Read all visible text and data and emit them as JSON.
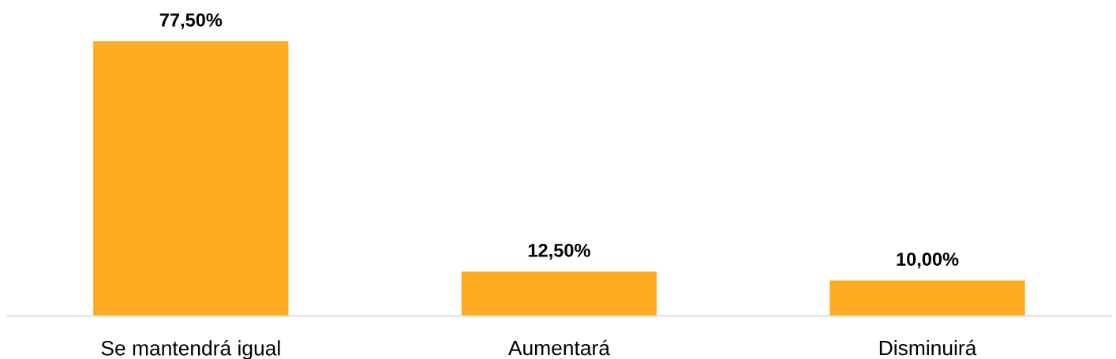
{
  "chart_data": {
    "type": "bar",
    "categories": [
      "Se mantendrá igual",
      "Aumentará",
      "Disminuirá"
    ],
    "values": [
      77.5,
      12.5,
      10.0
    ],
    "color": "#fdab20",
    "value_labels": [
      "77,50%",
      "12,50%",
      "10,00%"
    ],
    "grid": false,
    "legend": false
  }
}
